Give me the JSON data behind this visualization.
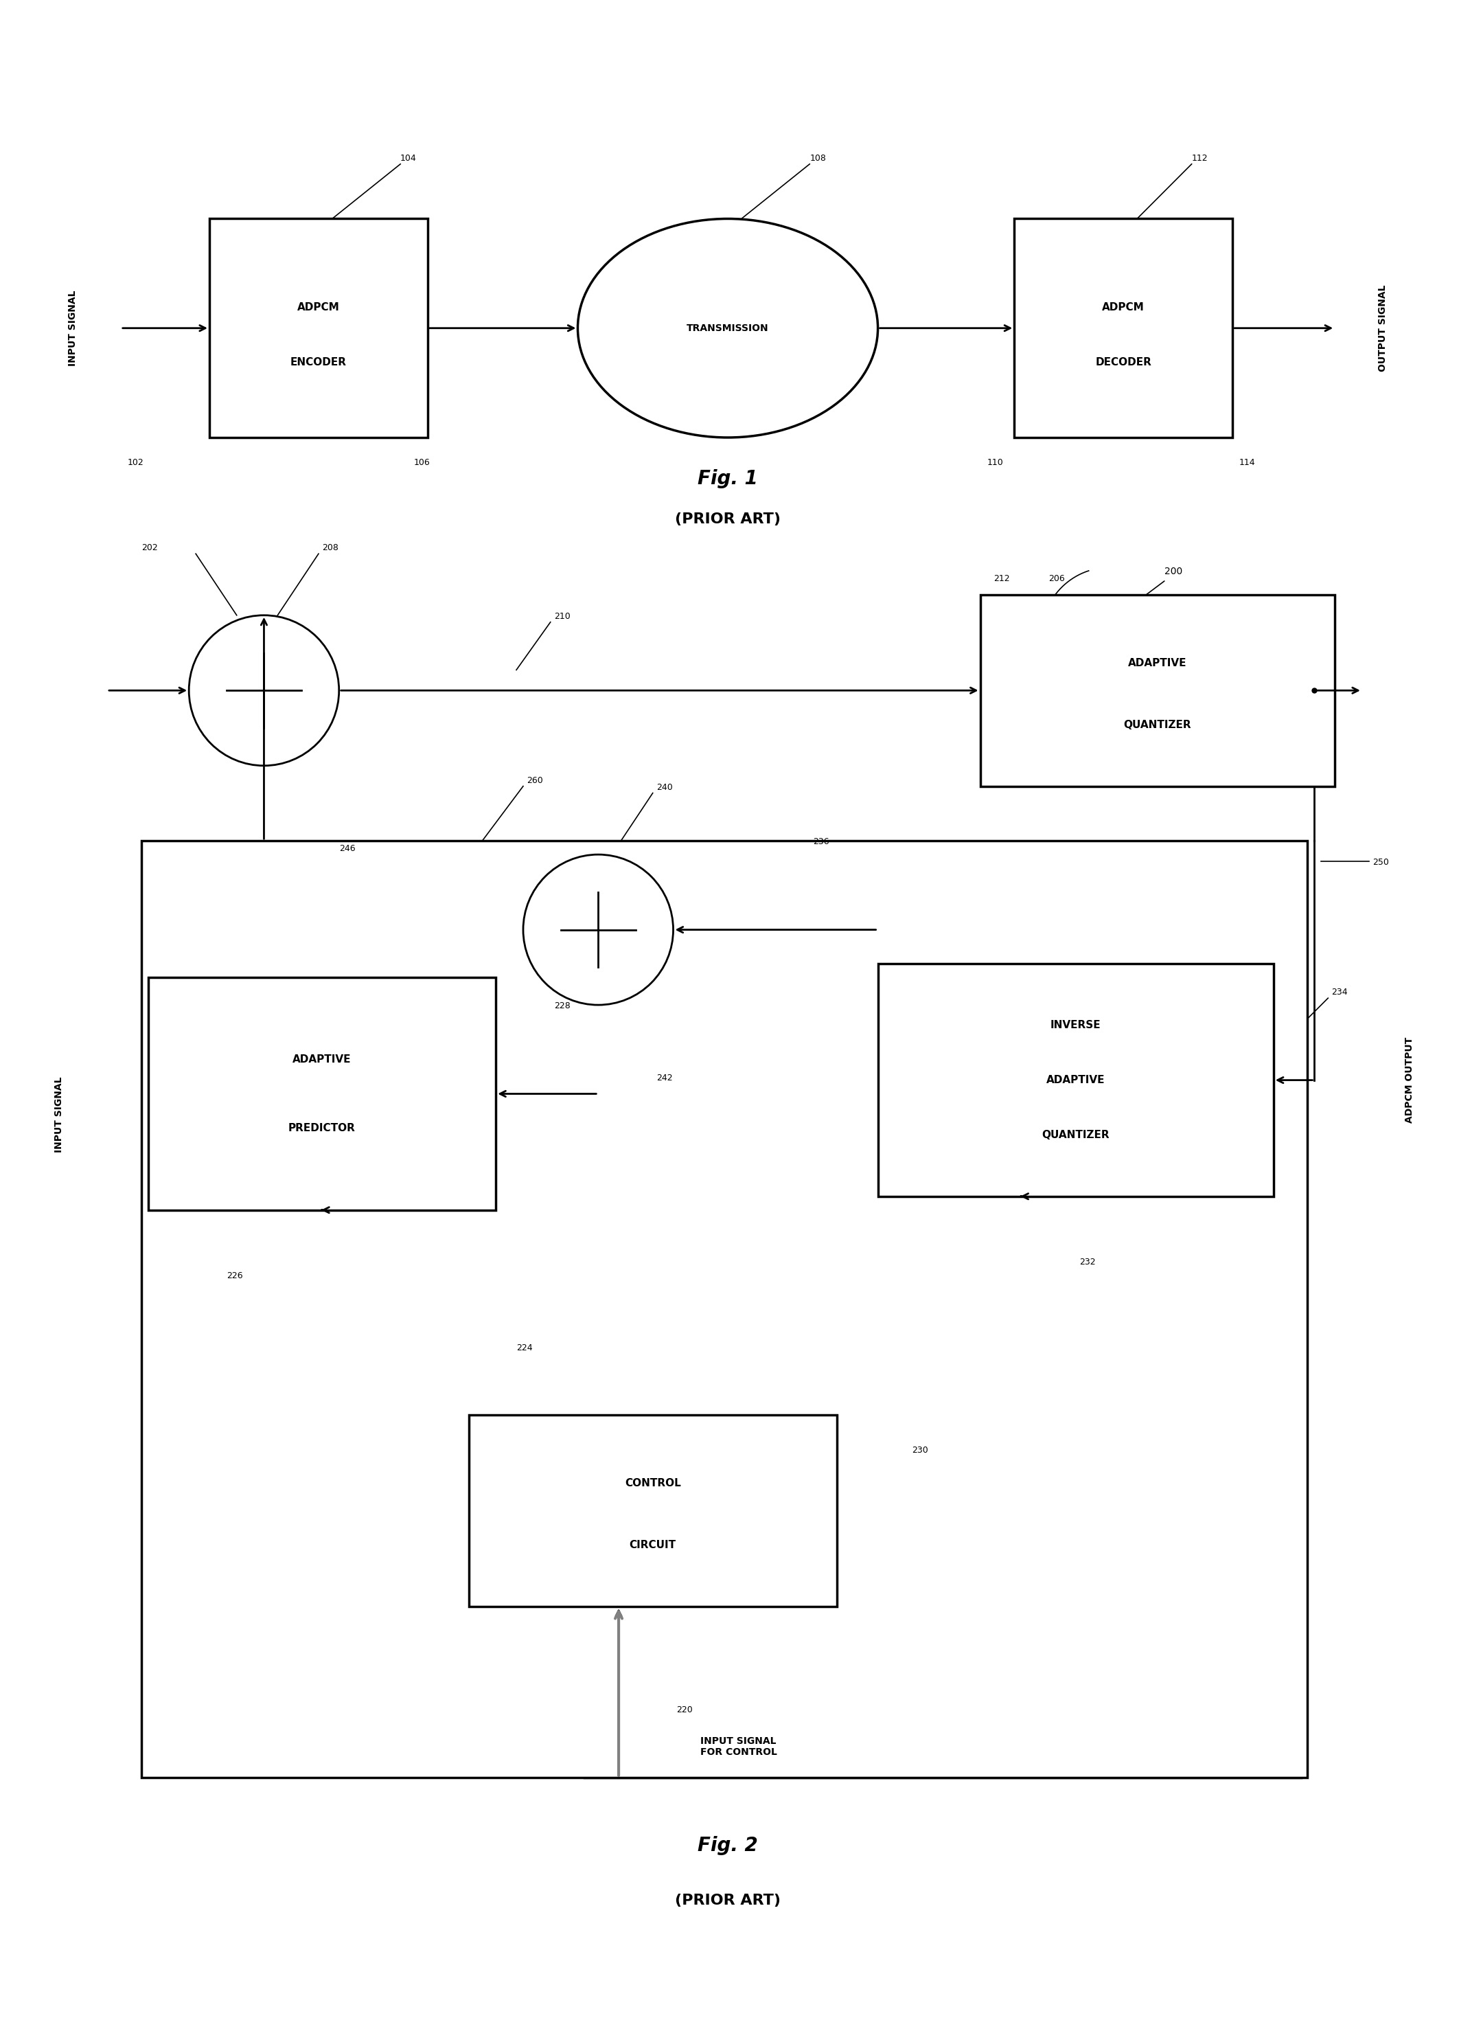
{
  "bg_color": "#ffffff",
  "fig_width": 21.25,
  "fig_height": 29.73,
  "fig1": {
    "title": "Fig. 1",
    "subtitle": "(PRIOR ART)",
    "ref_encoder": "104",
    "ref_transmission": "108",
    "ref_decoder": "112",
    "ref_102": "102",
    "ref_106": "106",
    "ref_110": "110",
    "ref_114": "114"
  },
  "fig2": {
    "title": "Fig. 2",
    "subtitle": "(PRIOR ART)",
    "ref_200": "200",
    "ref_202": "202",
    "ref_208": "208",
    "ref_210": "210",
    "ref_212": "212",
    "ref_206": "206",
    "ref_250": "250",
    "ref_260": "260",
    "ref_240": "240",
    "ref_246": "246",
    "ref_236": "236",
    "ref_242": "242",
    "ref_234": "234",
    "ref_228": "228",
    "ref_224": "224",
    "ref_226": "226",
    "ref_232": "232",
    "ref_230": "230",
    "ref_220": "220"
  }
}
